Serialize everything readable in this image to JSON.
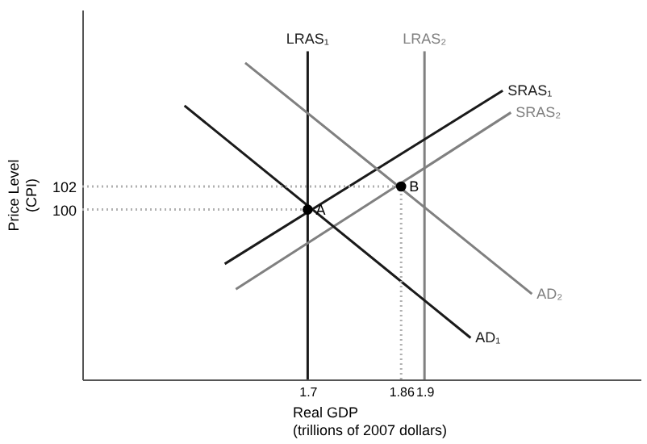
{
  "chart_data": {
    "type": "line",
    "xlabel": "Real GDP\n(trillions of 2007 dollars)",
    "ylabel": "Price Level\n(CPI)",
    "xlim": [
      1.314,
      2.27
    ],
    "ylim": [
      85.3,
      117.3
    ],
    "xticks": [
      1.7,
      1.86,
      1.9
    ],
    "yticks": [
      100,
      102
    ],
    "grid": false,
    "line_style": "solid",
    "series": [
      {
        "name": "LRAS₁",
        "color": "#1a1a1a",
        "x": [
          1.7,
          1.7
        ],
        "values": [
          85.3,
          113.7
        ]
      },
      {
        "name": "LRAS₂",
        "color": "#808080",
        "x": [
          1.9,
          1.9
        ],
        "values": [
          85.3,
          113.7
        ]
      },
      {
        "name": "SRAS₁",
        "color": "#1a1a1a",
        "x": [
          1.558,
          2.034
        ],
        "values": [
          95.3,
          110.3
        ]
      },
      {
        "name": "SRAS₂",
        "color": "#808080",
        "x": [
          1.577,
          2.048
        ],
        "values": [
          93.1,
          108.4
        ]
      },
      {
        "name": "AD₁",
        "color": "#1a1a1a",
        "x": [
          1.489,
          1.979
        ],
        "values": [
          109.0,
          88.9
        ]
      },
      {
        "name": "AD₂",
        "color": "#808080",
        "x": [
          1.593,
          2.084
        ],
        "values": [
          112.7,
          92.7
        ]
      },
      {
        "color": "#b0b0b0",
        "line_style": "dotted",
        "x": [
          1.314,
          1.86
        ],
        "values": [
          102,
          102
        ]
      },
      {
        "color": "#b0b0b0",
        "line_style": "dotted",
        "x": [
          1.314,
          1.7
        ],
        "values": [
          100,
          100
        ]
      },
      {
        "color": "#b0b0b0",
        "line_style": "dotted",
        "x": [
          1.86,
          1.86
        ],
        "values": [
          85.3,
          102
        ]
      },
      {
        "type": "scatter",
        "color": "#000000",
        "x": [
          1.7,
          1.86
        ],
        "values": [
          100,
          102
        ]
      }
    ],
    "annotations": [
      {
        "text": "A",
        "x": 1.7,
        "y": 100
      },
      {
        "text": "B",
        "x": 1.86,
        "y": 102
      }
    ]
  }
}
